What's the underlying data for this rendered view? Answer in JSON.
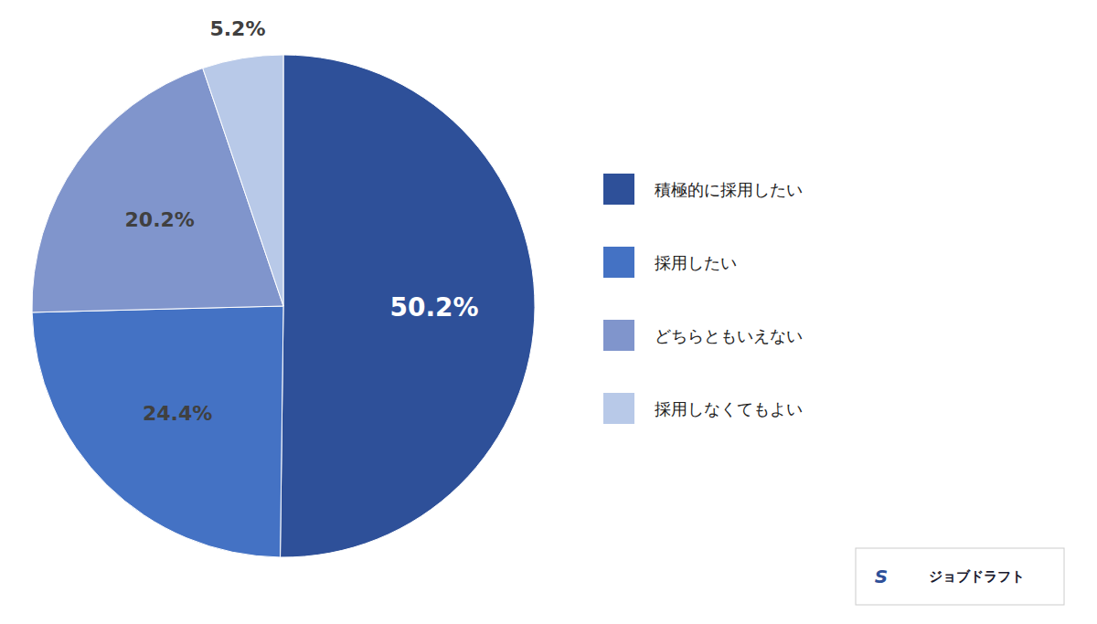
{
  "chart_data": {
    "type": "pie",
    "categories": [
      "積極的に採用したい",
      "採用したい",
      "どちらともいえない",
      "採用しなくてもよい"
    ],
    "values": [
      50.2,
      24.4,
      20.2,
      5.2
    ],
    "value_labels": [
      "50.2%",
      "24.4%",
      "20.2%",
      "5.2%"
    ],
    "colors": [
      "#2E5099",
      "#4472C4",
      "#8095CC",
      "#B8C9E8"
    ],
    "data_labels": true,
    "legend": "right",
    "annotations": [
      "S",
      "ジョブドラフト"
    ]
  }
}
